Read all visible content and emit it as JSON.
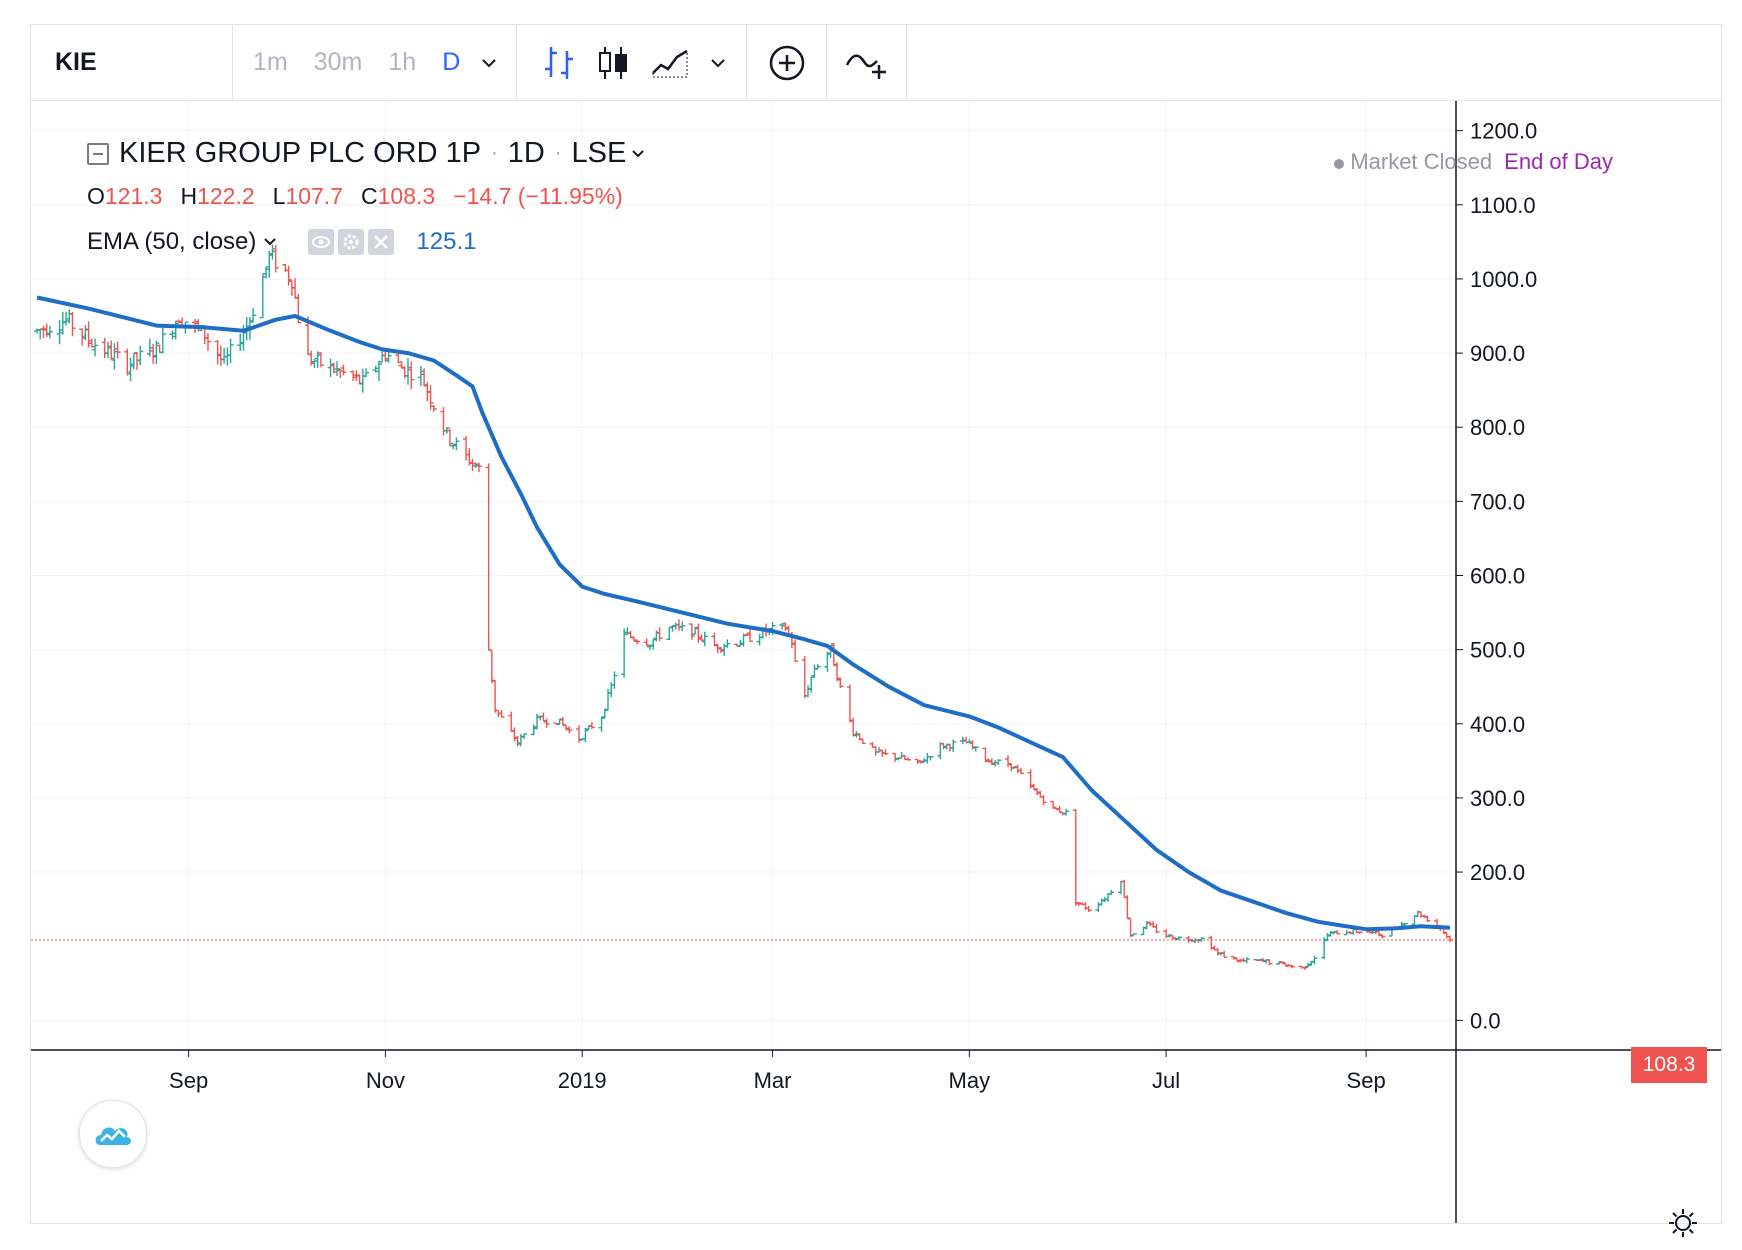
{
  "toolbar": {
    "symbol": "KIE",
    "intervals": [
      "1m",
      "30m",
      "1h",
      "D"
    ],
    "active_interval": "D"
  },
  "legend": {
    "name": "KIER GROUP PLC ORD 1P",
    "interval": "1D",
    "exchange": "LSE",
    "ohlc": {
      "O": "121.3",
      "H": "122.2",
      "L": "107.7",
      "C": "108.3"
    },
    "change": "−14.7 (−11.95%)",
    "ema_label": "EMA (50, close)",
    "ema_value": "125.1"
  },
  "status": {
    "market": "Market Closed",
    "session": "End of Day"
  },
  "price_tag": "108.3",
  "colors": {
    "up": "#26a69a",
    "down": "#ef5350",
    "ema": "#1e6ec8",
    "grid": "#f0f3fa",
    "eod": "#9c27b0"
  },
  "chart_data": {
    "type": "line",
    "y_ticks": [
      "1200.0",
      "1100.0",
      "1000.0",
      "900.0",
      "800.0",
      "700.0",
      "600.0",
      "500.0",
      "400.0",
      "300.0",
      "200.0",
      "0.0"
    ],
    "x_ticks": [
      {
        "label": "Sep",
        "date": "2018-09-01"
      },
      {
        "label": "Nov",
        "date": "2018-11-01"
      },
      {
        "label": "2019",
        "date": "2019-01-01"
      },
      {
        "label": "Mar",
        "date": "2019-03-01"
      },
      {
        "label": "May",
        "date": "2019-05-01"
      },
      {
        "label": "Jul",
        "date": "2019-07-01"
      },
      {
        "label": "Sep",
        "date": "2019-09-01"
      }
    ],
    "x_range": [
      "2018-07-16",
      "2019-09-27"
    ],
    "y_range": [
      -40,
      1240
    ],
    "last_price": 108.3,
    "price_series": {
      "name": "KIE",
      "points": [
        [
          "2018-07-16",
          930
        ],
        [
          "2018-07-25",
          945
        ],
        [
          "2018-08-02",
          915
        ],
        [
          "2018-08-13",
          885
        ],
        [
          "2018-08-22",
          905
        ],
        [
          "2018-08-29",
          950
        ],
        [
          "2018-09-06",
          925
        ],
        [
          "2018-09-12",
          885
        ],
        [
          "2018-09-20",
          945
        ],
        [
          "2018-09-26",
          1030
        ],
        [
          "2018-09-29",
          1020
        ],
        [
          "2018-10-03",
          1000
        ],
        [
          "2018-10-07",
          895
        ],
        [
          "2018-10-15",
          880
        ],
        [
          "2018-10-25",
          860
        ],
        [
          "2018-11-01",
          900
        ],
        [
          "2018-11-06",
          880
        ],
        [
          "2018-11-12",
          870
        ],
        [
          "2018-11-20",
          790
        ],
        [
          "2018-11-26",
          760
        ],
        [
          "2018-12-01",
          740
        ],
        [
          "2018-12-03",
          500
        ],
        [
          "2018-12-05",
          420
        ],
        [
          "2018-12-12",
          375
        ],
        [
          "2018-12-18",
          405
        ],
        [
          "2018-12-24",
          405
        ],
        [
          "2018-12-31",
          380
        ],
        [
          "2019-01-07",
          410
        ],
        [
          "2019-01-10",
          450
        ],
        [
          "2019-01-14",
          520
        ],
        [
          "2019-01-22",
          510
        ],
        [
          "2019-01-28",
          530
        ],
        [
          "2019-02-04",
          525
        ],
        [
          "2019-02-11",
          505
        ],
        [
          "2019-02-18",
          510
        ],
        [
          "2019-02-27",
          525
        ],
        [
          "2019-03-05",
          530
        ],
        [
          "2019-03-07",
          510
        ],
        [
          "2019-03-10",
          425
        ],
        [
          "2019-03-14",
          475
        ],
        [
          "2019-03-19",
          500
        ],
        [
          "2019-03-23",
          430
        ],
        [
          "2019-03-26",
          390
        ],
        [
          "2019-04-02",
          360
        ],
        [
          "2019-04-09",
          355
        ],
        [
          "2019-04-15",
          345
        ],
        [
          "2019-04-22",
          370
        ],
        [
          "2019-04-30",
          375
        ],
        [
          "2019-05-07",
          350
        ],
        [
          "2019-05-14",
          345
        ],
        [
          "2019-05-21",
          310
        ],
        [
          "2019-05-27",
          285
        ],
        [
          "2019-05-31",
          280
        ],
        [
          "2019-06-03",
          160
        ],
        [
          "2019-06-07",
          150
        ],
        [
          "2019-06-12",
          165
        ],
        [
          "2019-06-17",
          190
        ],
        [
          "2019-06-20",
          115
        ],
        [
          "2019-06-25",
          130
        ],
        [
          "2019-06-30",
          115
        ],
        [
          "2019-07-06",
          110
        ],
        [
          "2019-07-13",
          110
        ],
        [
          "2019-07-17",
          90
        ],
        [
          "2019-07-24",
          80
        ],
        [
          "2019-07-31",
          80
        ],
        [
          "2019-08-07",
          75
        ],
        [
          "2019-08-12",
          70
        ],
        [
          "2019-08-16",
          85
        ],
        [
          "2019-08-20",
          115
        ],
        [
          "2019-08-24",
          120
        ],
        [
          "2019-08-31",
          120
        ],
        [
          "2019-09-07",
          115
        ],
        [
          "2019-09-12",
          130
        ],
        [
          "2019-09-17",
          145
        ],
        [
          "2019-09-24",
          125
        ],
        [
          "2019-09-27",
          108.3
        ]
      ]
    },
    "ema_series": {
      "name": "EMA (50, close)",
      "points": [
        [
          "2018-07-16",
          975
        ],
        [
          "2018-08-01",
          960
        ],
        [
          "2018-08-22",
          937
        ],
        [
          "2018-09-05",
          935
        ],
        [
          "2018-09-18",
          930
        ],
        [
          "2018-09-28",
          945
        ],
        [
          "2018-10-04",
          950
        ],
        [
          "2018-10-15",
          930
        ],
        [
          "2018-10-24",
          915
        ],
        [
          "2018-10-31",
          905
        ],
        [
          "2018-11-08",
          900
        ],
        [
          "2018-11-16",
          890
        ],
        [
          "2018-11-23",
          870
        ],
        [
          "2018-11-28",
          855
        ],
        [
          "2018-12-01",
          820
        ],
        [
          "2018-12-07",
          760
        ],
        [
          "2018-12-13",
          710
        ],
        [
          "2018-12-18",
          665
        ],
        [
          "2018-12-25",
          615
        ],
        [
          "2019-01-01",
          585
        ],
        [
          "2019-01-08",
          575
        ],
        [
          "2019-01-18",
          565
        ],
        [
          "2019-02-01",
          550
        ],
        [
          "2019-02-15",
          535
        ],
        [
          "2019-03-01",
          525
        ],
        [
          "2019-03-10",
          515
        ],
        [
          "2019-03-18",
          505
        ],
        [
          "2019-03-26",
          480
        ],
        [
          "2019-04-06",
          450
        ],
        [
          "2019-04-17",
          425
        ],
        [
          "2019-05-01",
          410
        ],
        [
          "2019-05-10",
          395
        ],
        [
          "2019-05-20",
          375
        ],
        [
          "2019-05-30",
          355
        ],
        [
          "2019-06-08",
          310
        ],
        [
          "2019-06-18",
          270
        ],
        [
          "2019-06-28",
          230
        ],
        [
          "2019-07-08",
          200
        ],
        [
          "2019-07-18",
          175
        ],
        [
          "2019-07-28",
          160
        ],
        [
          "2019-08-07",
          145
        ],
        [
          "2019-08-17",
          133
        ],
        [
          "2019-08-24",
          128
        ],
        [
          "2019-09-01",
          123
        ],
        [
          "2019-09-10",
          124
        ],
        [
          "2019-09-18",
          127
        ],
        [
          "2019-09-27",
          125
        ]
      ]
    }
  }
}
